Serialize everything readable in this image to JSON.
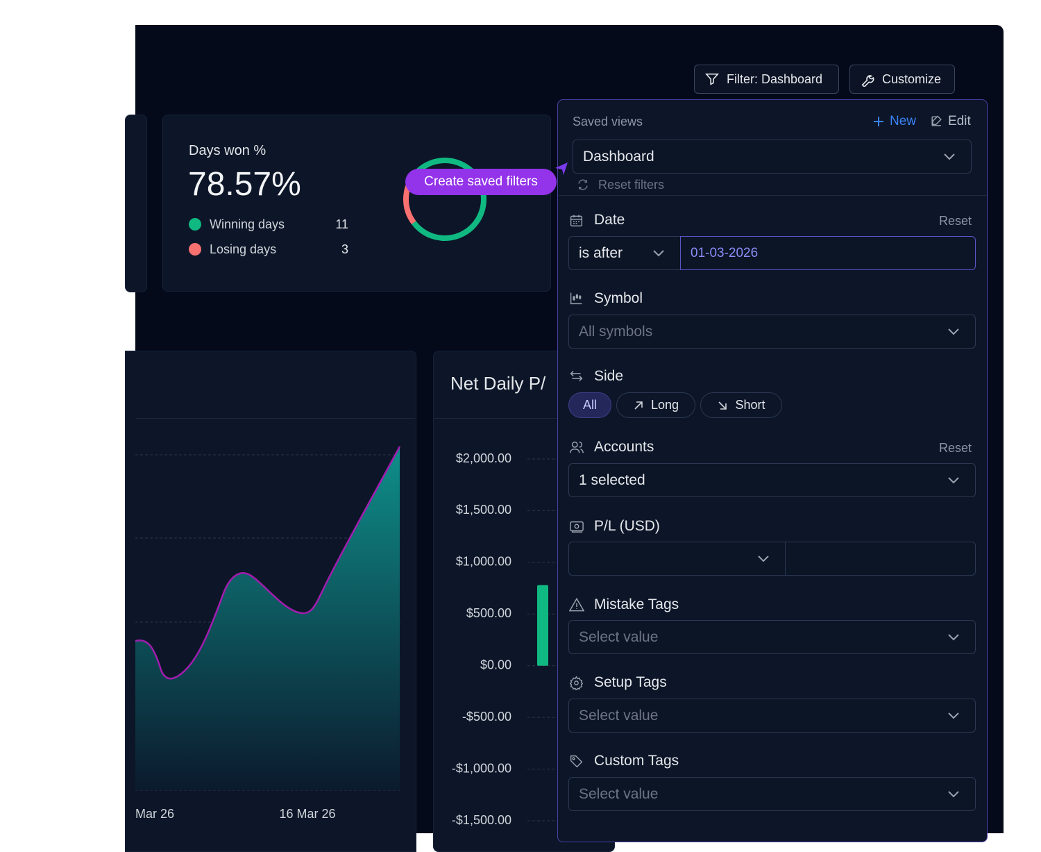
{
  "toolbar": {
    "filter_button": "Filter: Dashboard",
    "customize_button": "Customize"
  },
  "days_won_card": {
    "title": "Days won %",
    "value": "78.57%",
    "legend": [
      {
        "label": "Winning days",
        "count": 11,
        "color": "#10b981"
      },
      {
        "label": "Losing days",
        "count": 3,
        "color": "#f87171"
      }
    ]
  },
  "tooltip": "Create saved filters",
  "cumulative_chart": {
    "x_labels": [
      "Mar 26",
      "16 Mar 26"
    ]
  },
  "net_daily_chart": {
    "title": "Net Daily P/",
    "ylim": [
      -1500,
      2000
    ],
    "yticks": [
      {
        "value": 2000,
        "label": "$2,000.00"
      },
      {
        "value": 1500,
        "label": "$1,500.00"
      },
      {
        "value": 1000,
        "label": "$1,000.00"
      },
      {
        "value": 500,
        "label": "$500.00"
      },
      {
        "value": 0,
        "label": "$0.00"
      },
      {
        "value": -500,
        "label": "-$500.00"
      },
      {
        "value": -1000,
        "label": "-$1,000.00"
      },
      {
        "value": -1500,
        "label": "-$1,500.00"
      }
    ],
    "values": [
      780
    ],
    "color": "#10b981"
  },
  "filter_panel": {
    "saved_views": {
      "label": "Saved views",
      "new": "New",
      "edit": "Edit",
      "selected": "Dashboard",
      "reset": "Reset filters"
    },
    "date": {
      "label": "Date",
      "reset": "Reset",
      "operator": "is after",
      "value": "01-03-2026"
    },
    "symbol": {
      "label": "Symbol",
      "placeholder": "All symbols"
    },
    "side": {
      "label": "Side",
      "options": [
        "All",
        "Long",
        "Short"
      ]
    },
    "accounts": {
      "label": "Accounts",
      "reset": "Reset",
      "value": "1 selected"
    },
    "pl": {
      "label": "P/L (USD)"
    },
    "mistake_tags": {
      "label": "Mistake Tags",
      "placeholder": "Select value"
    },
    "setup_tags": {
      "label": "Setup Tags",
      "placeholder": "Select value"
    },
    "custom_tags": {
      "label": "Custom Tags",
      "placeholder": "Select value"
    }
  }
}
